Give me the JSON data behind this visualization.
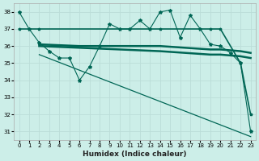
{
  "xlabel": "Humidex (Indice chaleur)",
  "bg_color": "#cceee8",
  "grid_color": "#bbddd8",
  "line_color": "#006655",
  "xlim": [
    -0.5,
    23.5
  ],
  "ylim": [
    30.5,
    38.5
  ],
  "x_ticks": [
    0,
    1,
    2,
    3,
    4,
    5,
    6,
    7,
    8,
    9,
    10,
    11,
    12,
    13,
    14,
    15,
    16,
    17,
    18,
    19,
    20,
    21,
    22,
    23
  ],
  "y_ticks": [
    31,
    32,
    33,
    34,
    35,
    36,
    37,
    38
  ],
  "line1_x": [
    0,
    1,
    2,
    3,
    4,
    5,
    6,
    7,
    8,
    9,
    10,
    11,
    12,
    13,
    14,
    15,
    16,
    17,
    18,
    19,
    20,
    21,
    22,
    23
  ],
  "line1_y": [
    38.0,
    37.0,
    36.2,
    35.7,
    35.3,
    35.3,
    34.0,
    34.8,
    36.0,
    37.3,
    37.0,
    37.0,
    37.5,
    37.0,
    38.0,
    38.1,
    36.5,
    37.8,
    37.0,
    36.1,
    36.0,
    35.6,
    35.0,
    31.0
  ],
  "line2_x": [
    0,
    1,
    2,
    14,
    19,
    20,
    22,
    23
  ],
  "line2_y": [
    37.0,
    37.0,
    37.0,
    37.0,
    37.0,
    37.0,
    35.0,
    32.0
  ],
  "line3_x": [
    2,
    6,
    14,
    19,
    20,
    22,
    23
  ],
  "line3_y": [
    36.1,
    36.0,
    36.0,
    35.8,
    35.8,
    35.7,
    35.6
  ],
  "line4_x": [
    2,
    6,
    14,
    19,
    20,
    22,
    23
  ],
  "line4_y": [
    36.0,
    35.9,
    35.7,
    35.5,
    35.5,
    35.4,
    35.3
  ],
  "line5_x": [
    2,
    23
  ],
  "line5_y": [
    35.5,
    30.7
  ]
}
